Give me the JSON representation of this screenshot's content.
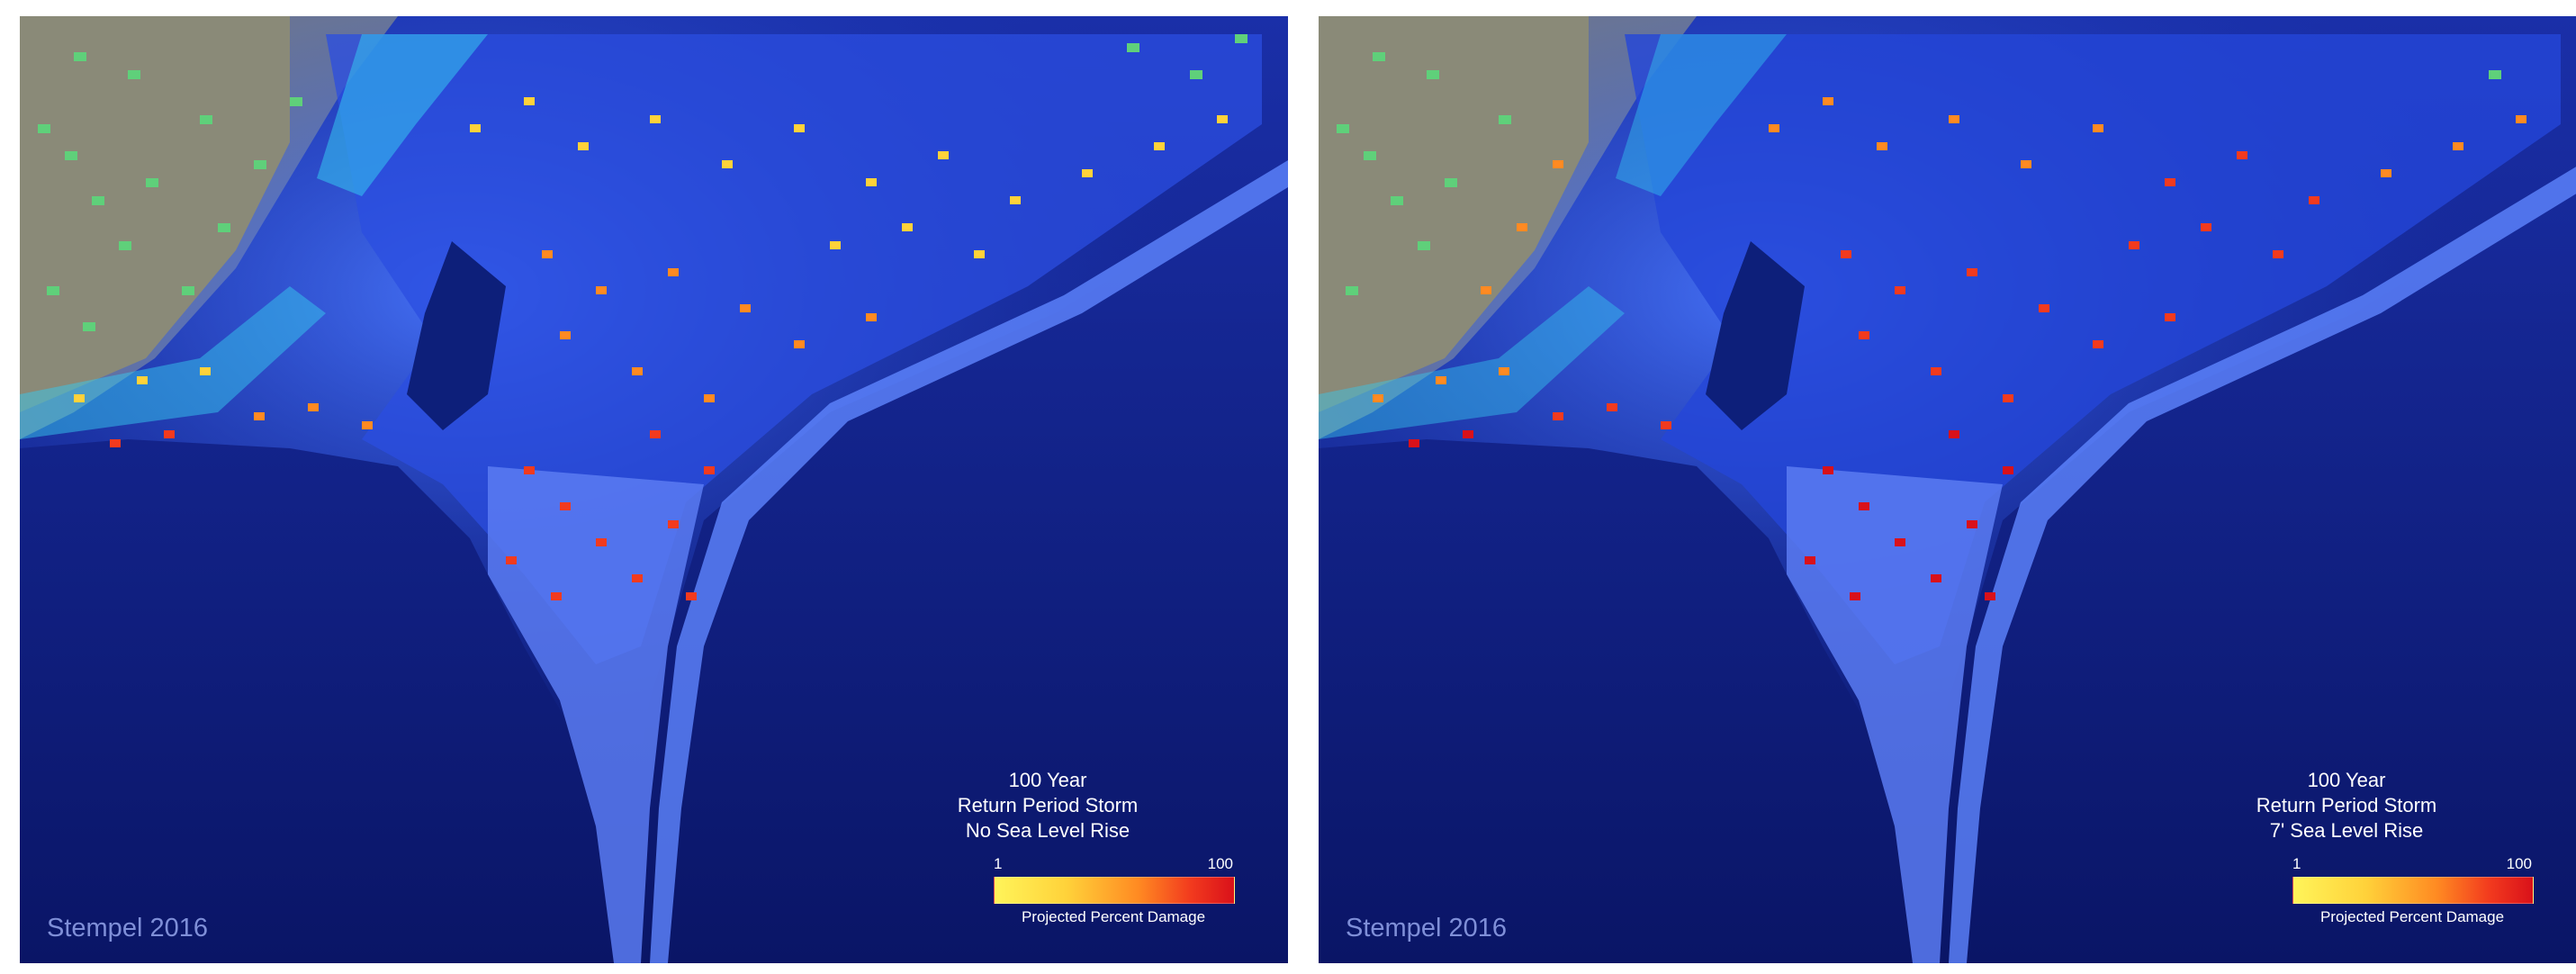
{
  "panels": [
    {
      "title_line1": "100 Year",
      "title_line2": "Return Period Storm",
      "title_line3": "No Sea Level Rise",
      "legend_min": "1",
      "legend_max": "100",
      "legend_label": "Projected Percent Damage",
      "credit": "Stempel 2016",
      "damage_level": "lower"
    },
    {
      "title_line1": "100 Year",
      "title_line2": "Return Period Storm",
      "title_line3": "7' Sea Level Rise",
      "legend_min": "1",
      "legend_max": "100",
      "legend_label": "Projected Percent Damage",
      "credit": "Stempel 2016",
      "damage_level": "higher"
    }
  ],
  "colors": {
    "ocean": "#0b1a6e",
    "flood_shallow": "#3f6df0",
    "land": "#8a8a7a",
    "undamaged_building": "#5fd07a",
    "damage_low": "#fff45a",
    "damage_high": "#d9111a"
  }
}
